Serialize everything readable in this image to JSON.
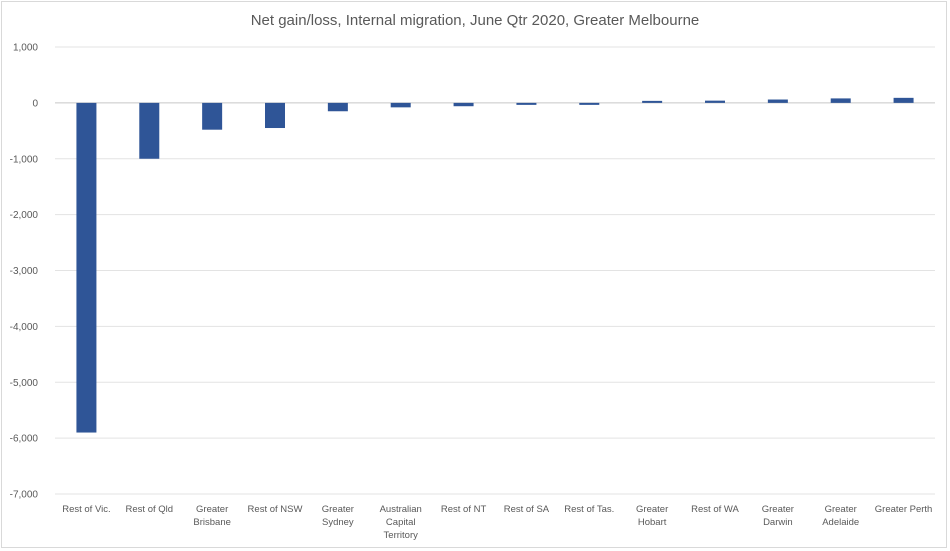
{
  "chart_data": {
    "type": "bar",
    "title": "Net gain/loss, Internal migration, June Qtr 2020, Greater Melbourne",
    "xlabel": "",
    "ylabel": "",
    "ylim": [
      -7000,
      1000
    ],
    "yticks": [
      1000,
      0,
      -1000,
      -2000,
      -3000,
      -4000,
      -5000,
      -6000,
      -7000
    ],
    "ytick_labels": [
      "1,000",
      "0",
      "-1,000",
      "-2,000",
      "-3,000",
      "-4,000",
      "-5,000",
      "-6,000",
      "-7,000"
    ],
    "grid": true,
    "legend": "none",
    "bar_color": "#2f5597",
    "categories": [
      [
        "Rest of Vic."
      ],
      [
        "Rest of Qld"
      ],
      [
        "Greater",
        "Brisbane"
      ],
      [
        "Rest of NSW"
      ],
      [
        "Greater",
        "Sydney"
      ],
      [
        "Australian",
        "Capital",
        "Territory"
      ],
      [
        "Rest of NT"
      ],
      [
        "Rest of SA"
      ],
      [
        "Rest of Tas."
      ],
      [
        "Greater",
        "Hobart"
      ],
      [
        "Rest of WA"
      ],
      [
        "Greater",
        "Darwin"
      ],
      [
        "Greater",
        "Adelaide"
      ],
      [
        "Greater Perth"
      ]
    ],
    "values": [
      -5900,
      -1000,
      -480,
      -450,
      -150,
      -80,
      -60,
      -20,
      -30,
      20,
      40,
      60,
      80,
      90
    ]
  }
}
